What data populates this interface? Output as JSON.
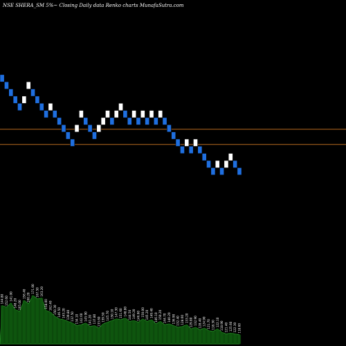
{
  "header": {
    "title": "NSE SHERA_SM 5%~ Closing Daily data Renko charts MunafaSutra.com"
  },
  "chart_data": {
    "type": "renko",
    "title": "NSE SHERA_SM 5%~ Closing Daily data Renko charts MunafaSutra.com",
    "symbol": "SHERA_SM",
    "exchange": "NSE",
    "brick_pct": "5%",
    "colors": {
      "up": "#ffffff",
      "down": "#1f6fe0",
      "reference_line": "#b86a1f",
      "volume_fill": "#0c4a0c",
      "volume_edge": "#2aa02a",
      "background": "#000000"
    },
    "reference_lines": [
      140.5,
      132.0
    ],
    "y_range": [
      60,
      205
    ],
    "bricks": [
      {
        "dir": "down",
        "level": 169
      },
      {
        "dir": "down",
        "level": 165
      },
      {
        "dir": "down",
        "level": 161
      },
      {
        "dir": "down",
        "level": 157
      },
      {
        "dir": "down",
        "level": 153
      },
      {
        "dir": "up",
        "level": 157
      },
      {
        "dir": "up",
        "level": 165
      },
      {
        "dir": "down",
        "level": 161
      },
      {
        "dir": "down",
        "level": 157
      },
      {
        "dir": "down",
        "level": 153
      },
      {
        "dir": "down",
        "level": 149
      },
      {
        "dir": "up",
        "level": 153
      },
      {
        "dir": "down",
        "level": 149
      },
      {
        "dir": "down",
        "level": 145
      },
      {
        "dir": "down",
        "level": 141
      },
      {
        "dir": "down",
        "level": 137
      },
      {
        "dir": "down",
        "level": 133
      },
      {
        "dir": "up",
        "level": 141
      },
      {
        "dir": "up",
        "level": 149
      },
      {
        "dir": "down",
        "level": 145
      },
      {
        "dir": "down",
        "level": 141
      },
      {
        "dir": "down",
        "level": 137
      },
      {
        "dir": "up",
        "level": 141
      },
      {
        "dir": "up",
        "level": 145
      },
      {
        "dir": "up",
        "level": 149
      },
      {
        "dir": "down",
        "level": 145
      },
      {
        "dir": "up",
        "level": 149
      },
      {
        "dir": "up",
        "level": 153
      },
      {
        "dir": "down",
        "level": 149
      },
      {
        "dir": "down",
        "level": 145
      },
      {
        "dir": "up",
        "level": 149
      },
      {
        "dir": "down",
        "level": 145
      },
      {
        "dir": "up",
        "level": 149
      },
      {
        "dir": "down",
        "level": 145
      },
      {
        "dir": "up",
        "level": 149
      },
      {
        "dir": "down",
        "level": 145
      },
      {
        "dir": "up",
        "level": 149
      },
      {
        "dir": "down",
        "level": 145
      },
      {
        "dir": "down",
        "level": 141
      },
      {
        "dir": "down",
        "level": 137
      },
      {
        "dir": "down",
        "level": 133
      },
      {
        "dir": "down",
        "level": 129
      },
      {
        "dir": "up",
        "level": 133
      },
      {
        "dir": "down",
        "level": 129
      },
      {
        "dir": "up",
        "level": 133
      },
      {
        "dir": "down",
        "level": 129
      },
      {
        "dir": "down",
        "level": 125
      },
      {
        "dir": "down",
        "level": 121
      },
      {
        "dir": "down",
        "level": 117
      },
      {
        "dir": "up",
        "level": 121
      },
      {
        "dir": "down",
        "level": 117
      },
      {
        "dir": "up",
        "level": 121
      },
      {
        "dir": "up",
        "level": 125
      },
      {
        "dir": "down",
        "level": 121
      },
      {
        "dir": "down",
        "level": 117
      }
    ],
    "volume_labels": [
      "144.80",
      "152.60",
      "141.00",
      "148.20",
      "165.00",
      "156.40",
      "160.20",
      "171.00",
      "167.50",
      "163.20",
      "158.00",
      "162.40",
      "150.30",
      "146.50",
      "143.20",
      "139.80",
      "137.50",
      "134.10",
      "142.60",
      "145.90",
      "141.20",
      "137.80",
      "133.60",
      "139.50",
      "145.70",
      "150.10",
      "147.30",
      "151.60",
      "148.80",
      "144.50",
      "149.20",
      "146.60",
      "150.00",
      "145.20",
      "149.40",
      "146.10",
      "150.20",
      "144.70",
      "140.20",
      "136.90",
      "132.40",
      "128.60",
      "133.20",
      "129.80",
      "132.90",
      "128.40",
      "124.90",
      "121.70",
      "118.30",
      "122.10",
      "118.90",
      "121.40",
      "125.60",
      "122.30",
      "118.60"
    ],
    "volume": [
      46,
      44,
      49,
      41,
      39,
      52,
      48,
      58,
      54,
      55,
      40,
      38,
      33,
      30,
      29,
      27,
      25,
      22,
      23,
      25,
      21,
      22,
      19,
      24,
      26,
      28,
      30,
      29,
      31,
      27,
      28,
      26,
      30,
      27,
      29,
      24,
      27,
      23,
      24,
      22,
      20,
      21,
      23,
      18,
      20,
      17,
      19,
      16,
      15,
      18,
      14,
      12,
      13,
      12,
      11
    ]
  }
}
